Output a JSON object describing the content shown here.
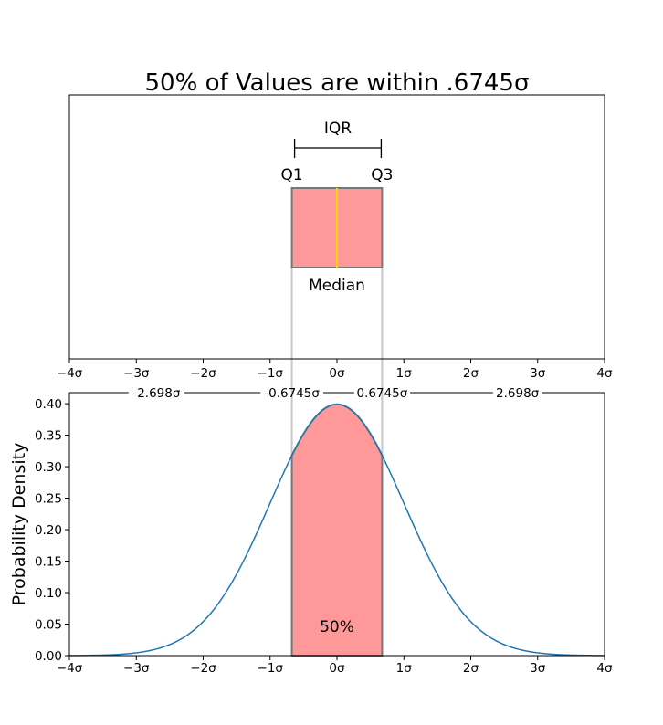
{
  "chart_data": [
    {
      "type": "box",
      "title": "50% of Values are within .6745σ",
      "xlim": [
        -4,
        4
      ],
      "xticks": [
        "−4σ",
        "−3σ",
        "−2σ",
        "−1σ",
        "0σ",
        "1σ",
        "2σ",
        "3σ",
        "4σ"
      ],
      "box": {
        "q1": -0.6745,
        "median": 0,
        "q3": 0.6745
      },
      "annotations": {
        "iqr": "IQR",
        "q1": "Q1",
        "q3": "Q3",
        "median": "Median"
      },
      "colors": {
        "box_fill": "#ff9999",
        "box_edge": "#777777",
        "median": "#ffd700"
      }
    },
    {
      "type": "area",
      "ylabel": "Probability Density",
      "xlim": [
        -4,
        4
      ],
      "ylim": [
        0,
        0.4175
      ],
      "xticks": [
        "−4σ",
        "−3σ",
        "−2σ",
        "−1σ",
        "0σ",
        "1σ",
        "2σ",
        "3σ",
        "4σ"
      ],
      "yticks": [
        "0.00",
        "0.05",
        "0.10",
        "0.15",
        "0.20",
        "0.25",
        "0.30",
        "0.35",
        "0.40"
      ],
      "top_labels": [
        {
          "x": -2.698,
          "label": "-2.698σ"
        },
        {
          "x": -0.6745,
          "label": "-0.6745σ"
        },
        {
          "x": 0.6745,
          "label": "0.6745σ"
        },
        {
          "x": 2.698,
          "label": "2.698σ"
        }
      ],
      "curve": "normal pdf, mean 0, sd 1",
      "shaded": {
        "from": -0.6745,
        "to": 0.6745,
        "label": "50%"
      },
      "colors": {
        "line": "#1f77b4",
        "fill": "#ff9999"
      }
    }
  ]
}
